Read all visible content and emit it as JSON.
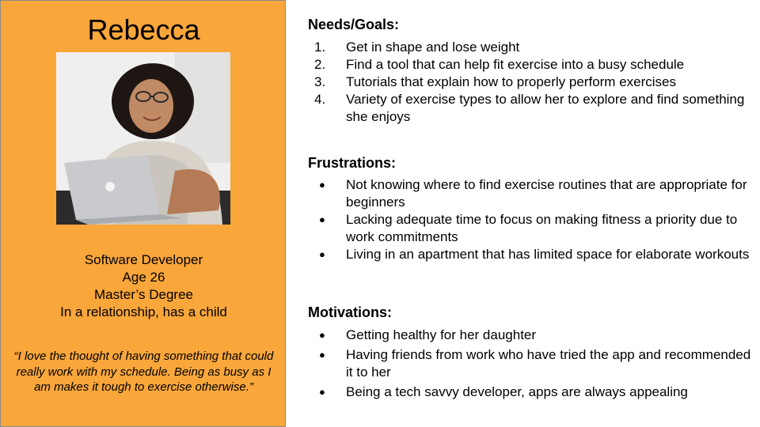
{
  "persona": {
    "name": "Rebecca",
    "details": [
      "Software Developer",
      "Age 26",
      "Master’s Degree",
      "In a relationship, has a child"
    ],
    "quote": "“I love the thought of having something that could really work with my schedule. Being as busy as I am makes it tough to exercise otherwise.”"
  },
  "needs_goals": {
    "title": "Needs/Goals:",
    "items": [
      {
        "marker": "1.",
        "text": "Get in shape and lose weight"
      },
      {
        "marker": "2.",
        "text": "Find a tool that can help fit exercise into a busy schedule"
      },
      {
        "marker": "3.",
        "text": "Tutorials that explain how to properly perform exercises"
      },
      {
        "marker": "4.",
        "text": "Variety of exercise types to allow her to explore and find something she enjoys"
      }
    ]
  },
  "frustrations": {
    "title": "Frustrations:",
    "items": [
      {
        "marker": "●",
        "text": "Not knowing where to find exercise routines that are appropriate for beginners"
      },
      {
        "marker": "●",
        "text": "Lacking adequate time to focus on making fitness a priority due to work commitments"
      },
      {
        "marker": "●",
        "text": "Living in an apartment that has limited space for elaborate workouts"
      }
    ]
  },
  "motivations": {
    "title": "Motivations:",
    "items": [
      {
        "marker": "●",
        "text": "Getting healthy for her daughter"
      },
      {
        "marker": "●",
        "text": "Having friends from work who have tried the app and recommended it to her"
      },
      {
        "marker": "●",
        "text": "Being a tech savvy developer, apps are always appealing"
      }
    ]
  },
  "colors": {
    "panel": "#f9a63a",
    "border": "#8a8a8a"
  }
}
